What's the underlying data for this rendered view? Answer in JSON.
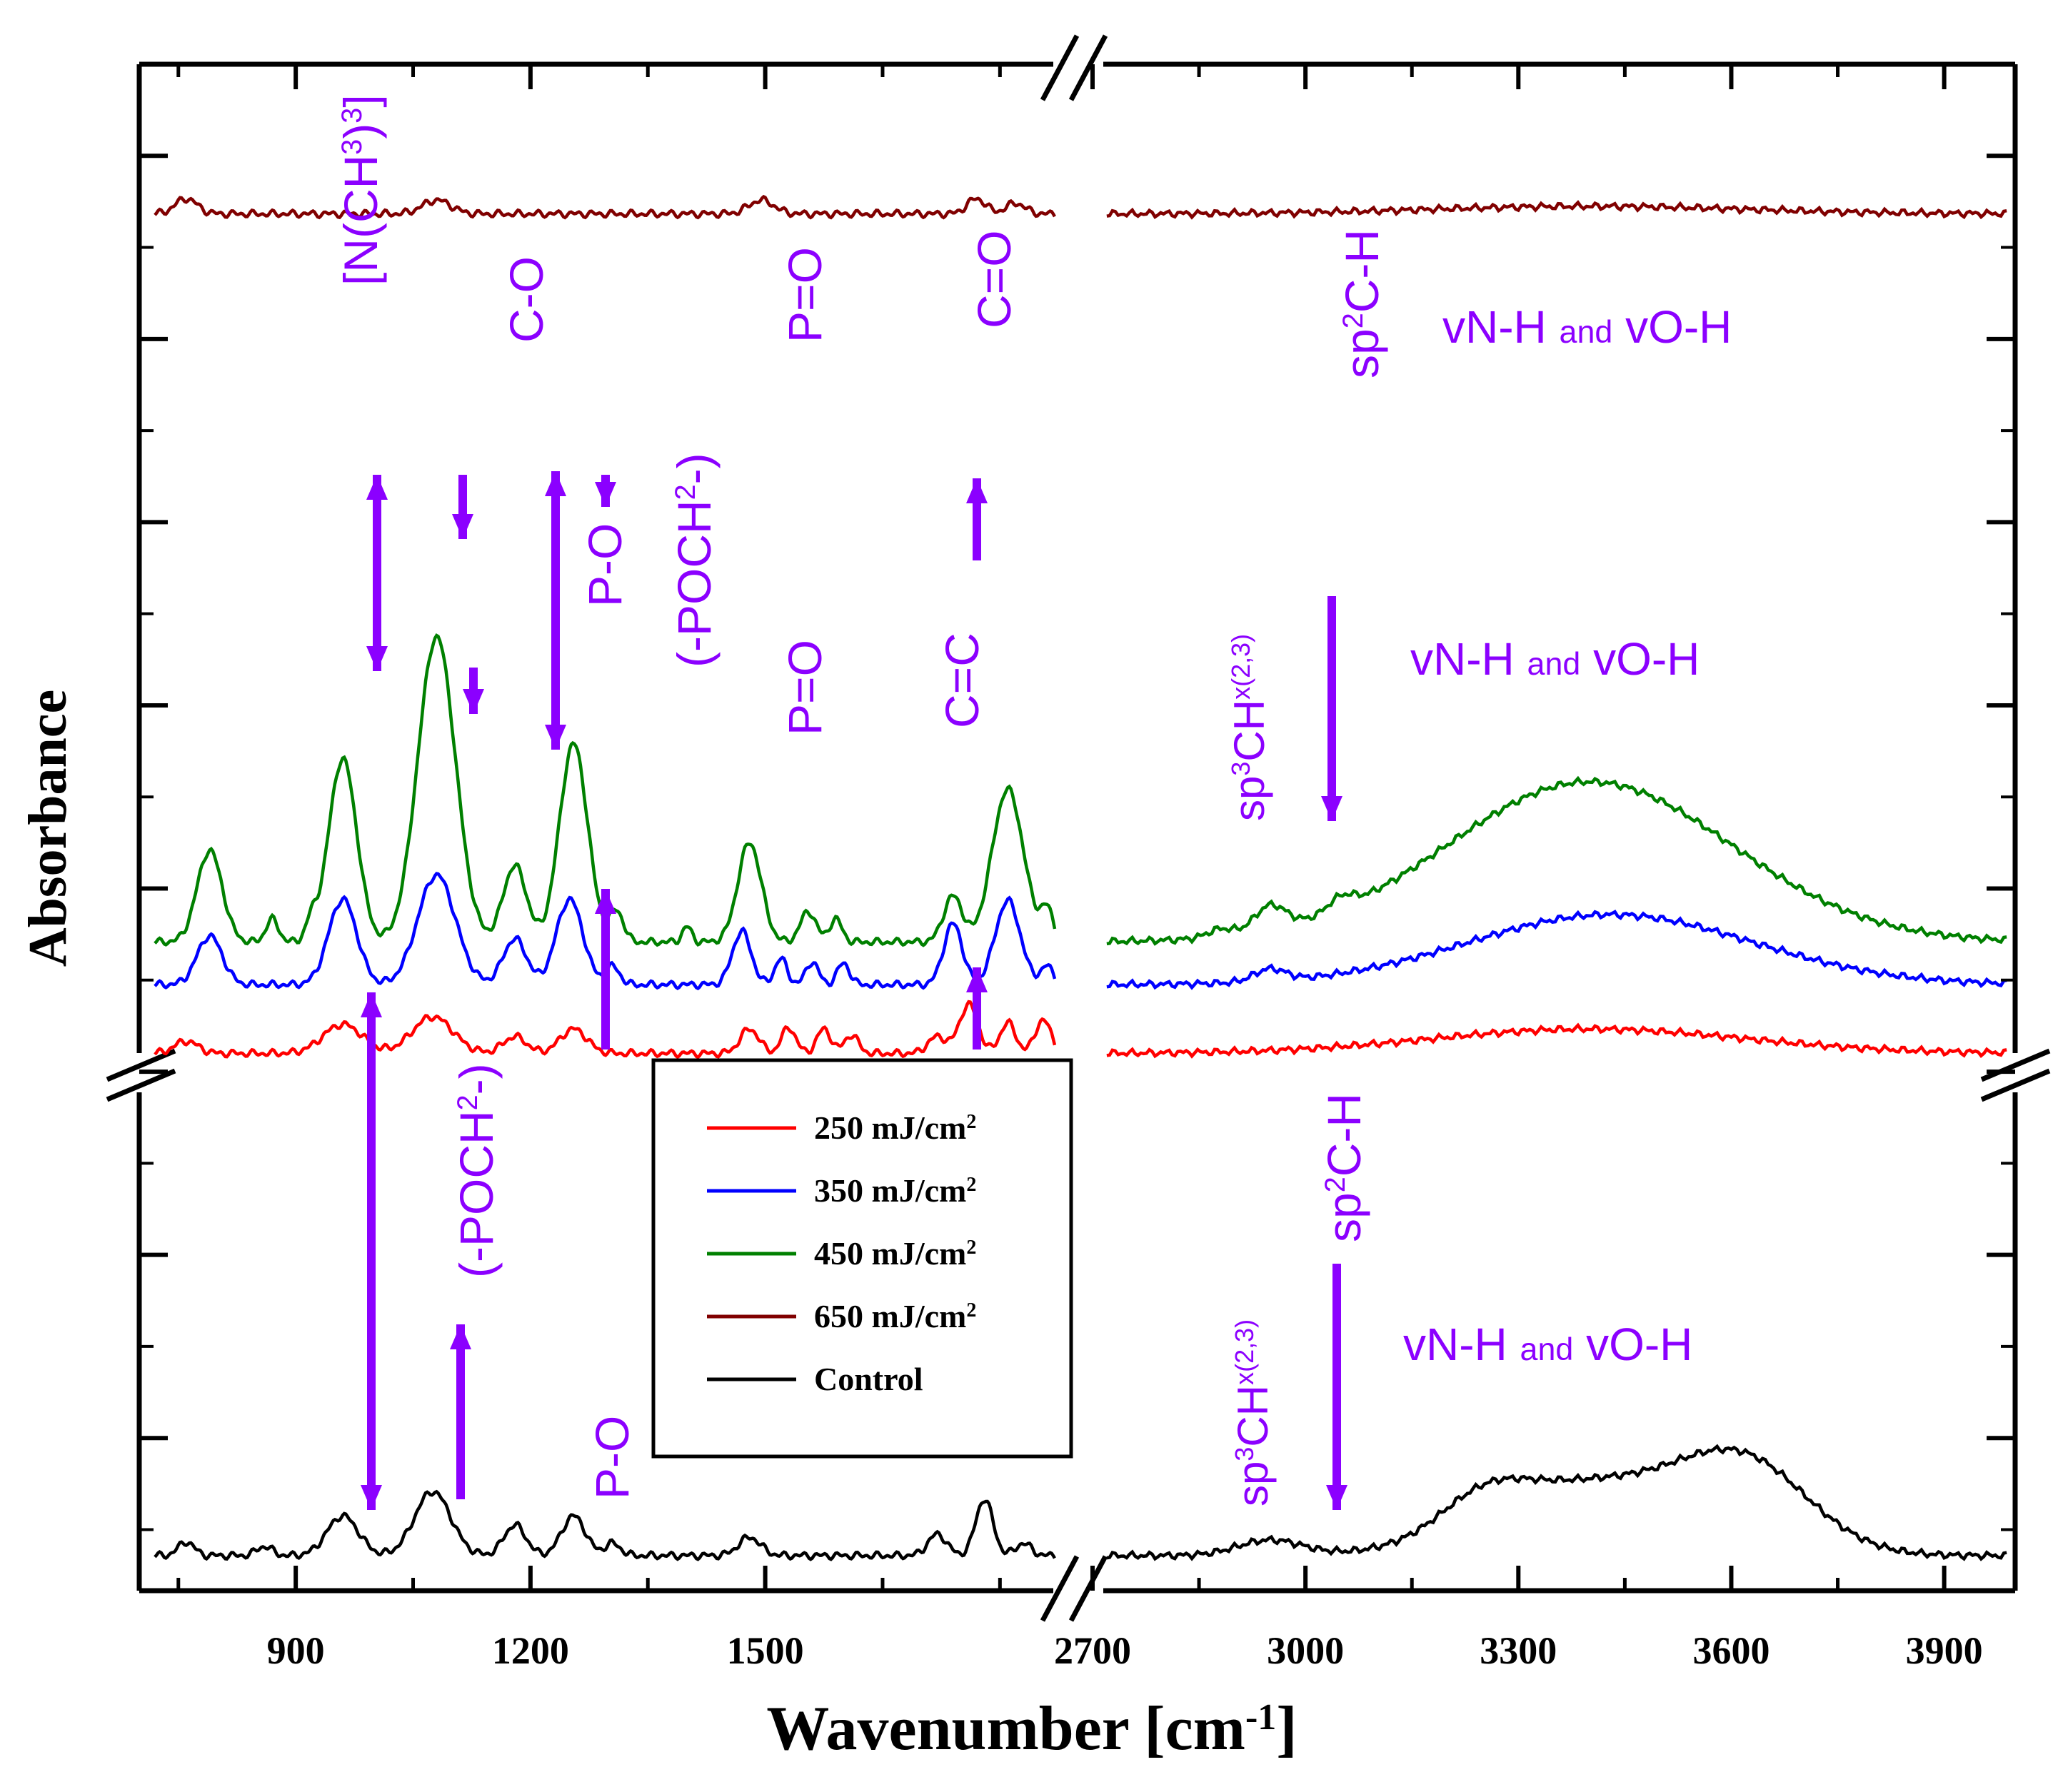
{
  "chart_data": {
    "type": "line",
    "xlabel": "Wavenumber [cm",
    "xlabel_sup": "-1",
    "xlabel_end": "]",
    "ylabel": "Absorbance",
    "axis_break": "x",
    "x_segments": [
      {
        "range": [
          700,
          1880
        ],
        "ticks": [
          900,
          1200,
          1500
        ]
      },
      {
        "range": [
          2700,
          4000
        ],
        "ticks": [
          2700,
          3000,
          3300,
          3600,
          3900
        ]
      }
    ],
    "y_range": [
      0,
      100
    ],
    "colors": {
      "250": "#ff0000",
      "350": "#0000ff",
      "450": "#008000",
      "650": "#800000",
      "control": "#000000",
      "annotation": "#8b00ff"
    },
    "legend": {
      "position": "center",
      "entries": [
        {
          "label": "250 mJ/cm",
          "sup": "2",
          "color": "#ff0000"
        },
        {
          "label": "350 mJ/cm",
          "sup": "2",
          "color": "#0000ff"
        },
        {
          "label": "450 mJ/cm",
          "sup": "2",
          "color": "#008000"
        },
        {
          "label": "650 mJ/cm",
          "sup": "2",
          "color": "#800000"
        },
        {
          "label": "Control",
          "sup": "",
          "color": "#000000"
        }
      ]
    },
    "series": [
      {
        "name": "450 mJ/cm2",
        "color": "#008000",
        "baseline": 42.5,
        "peaks": [
          [
            790,
            6,
            16
          ],
          [
            870,
            1.5,
            8
          ],
          [
            920,
            1.2,
            7
          ],
          [
            960,
            12,
            18
          ],
          [
            1080,
            20,
            24
          ],
          [
            1180,
            5,
            15
          ],
          [
            1255,
            13,
            18
          ],
          [
            1310,
            2,
            9
          ],
          [
            1400,
            1,
            6
          ],
          [
            1480,
            6.5,
            15
          ],
          [
            1555,
            2,
            10
          ],
          [
            1590,
            1.5,
            8
          ],
          [
            1740,
            3,
            12
          ],
          [
            1810,
            10,
            20
          ],
          [
            1860,
            2,
            8
          ]
        ],
        "right_peaks": [
          [
            2880,
            0.5,
            18
          ],
          [
            2950,
            1.6,
            22
          ],
          [
            3050,
            0.8,
            18
          ],
          [
            3400,
            10.5,
            200
          ]
        ]
      },
      {
        "name": "350 mJ/cm2",
        "color": "#0000ff",
        "baseline": 39.7,
        "peaks": [
          [
            790,
            3.2,
            16
          ],
          [
            960,
            5.6,
            18
          ],
          [
            1080,
            7.2,
            24
          ],
          [
            1180,
            3,
            15
          ],
          [
            1250,
            5.6,
            17
          ],
          [
            1305,
            1.2,
            9
          ],
          [
            1470,
            3.5,
            12
          ],
          [
            1520,
            1.7,
            8
          ],
          [
            1560,
            1.5,
            8
          ],
          [
            1600,
            1.4,
            8
          ],
          [
            1740,
            4,
            12
          ],
          [
            1810,
            5.5,
            16
          ],
          [
            1860,
            1.2,
            8
          ]
        ],
        "right_peaks": [
          [
            2950,
            0.8,
            22
          ],
          [
            3430,
            4.6,
            200
          ]
        ]
      },
      {
        "name": "250 mJ/cm2",
        "color": "#ff0000",
        "baseline": 35.2,
        "peaks": [
          [
            760,
            0.8,
            15
          ],
          [
            960,
            1.9,
            25
          ],
          [
            1075,
            2.4,
            26
          ],
          [
            1180,
            1.1,
            15
          ],
          [
            1255,
            1.6,
            17
          ],
          [
            1480,
            1.6,
            12
          ],
          [
            1530,
            1.7,
            9
          ],
          [
            1575,
            1.6,
            9
          ],
          [
            1610,
            1.2,
            9
          ],
          [
            1720,
            1.1,
            12
          ],
          [
            1760,
            3.2,
            12
          ],
          [
            1810,
            2,
            10
          ],
          [
            1855,
            2.2,
            10
          ]
        ],
        "right_peaks": [
          [
            3400,
            1.6,
            220
          ]
        ]
      },
      {
        "name": "650 mJ/cm2",
        "color": "#800000",
        "baseline": 90.2,
        "peaks": [
          [
            760,
            1,
            14
          ],
          [
            1080,
            0.9,
            18
          ],
          [
            1495,
            0.9,
            16
          ],
          [
            1770,
            1,
            12
          ],
          [
            1820,
            0.7,
            12
          ]
        ],
        "right_peaks": [
          [
            3400,
            0.5,
            220
          ]
        ]
      },
      {
        "name": "Control",
        "color": "#000000",
        "baseline": 2.3,
        "peaks": [
          [
            760,
            0.9,
            10
          ],
          [
            860,
            0.6,
            10
          ],
          [
            960,
            2.6,
            20
          ],
          [
            1075,
            4.2,
            23
          ],
          [
            1180,
            2,
            14
          ],
          [
            1255,
            2.6,
            15
          ],
          [
            1305,
            0.8,
            10
          ],
          [
            1480,
            1.2,
            14
          ],
          [
            1720,
            1.4,
            12
          ],
          [
            1780,
            3.7,
            11
          ],
          [
            1830,
            0.8,
            10
          ]
        ],
        "right_peaks": [
          [
            2950,
            1,
            45
          ],
          [
            3250,
            2,
            60
          ],
          [
            3400,
            4.7,
            140
          ],
          [
            3620,
            5.4,
            90
          ]
        ]
      }
    ],
    "annotations": [
      {
        "text": "[N(CH3)3]",
        "parts": [
          [
            "[N(CH",
            false
          ],
          [
            "3",
            true
          ],
          [
            ")",
            false
          ],
          [
            "3",
            true
          ],
          [
            "]",
            false
          ]
        ]
      },
      {
        "text": "C-O"
      },
      {
        "text": "P=O"
      },
      {
        "text": "C=O"
      },
      {
        "text": "sp2C-H",
        "parts": [
          [
            "sp",
            false
          ],
          [
            "2",
            true
          ],
          [
            "C-H",
            false
          ]
        ]
      },
      {
        "text": "vN-H and vO-H",
        "parts": [
          [
            "vN-H ",
            false
          ],
          [
            "and",
            false
          ],
          [
            " vO-H",
            false
          ]
        ]
      },
      {
        "text": "P-O"
      },
      {
        "text": "(-POCH2-)",
        "parts": [
          [
            "(-POCH",
            false
          ],
          [
            "2",
            true
          ],
          [
            "-)",
            false
          ]
        ]
      },
      {
        "text": "P=O"
      },
      {
        "text": "C=C"
      },
      {
        "text": "sp3CHx(2,3)",
        "parts": [
          [
            "sp",
            false
          ],
          [
            "3",
            true
          ],
          [
            "CH",
            false
          ],
          [
            "x(2,3)",
            true
          ]
        ]
      },
      {
        "text": "vN-H and vO-H",
        "parts": [
          [
            "vN-H ",
            false
          ],
          [
            "and",
            false
          ],
          [
            " vO-H",
            false
          ]
        ]
      },
      {
        "text": "(-POCH2-)",
        "parts": [
          [
            "(-POCH",
            false
          ],
          [
            "2",
            true
          ],
          [
            "-)",
            false
          ]
        ]
      },
      {
        "text": "P-O"
      },
      {
        "text": "sp3CHx(2,3)",
        "parts": [
          [
            "sp",
            false
          ],
          [
            "3",
            true
          ],
          [
            "CH",
            false
          ],
          [
            "x(2,3)",
            true
          ]
        ]
      },
      {
        "text": "sp2C-H",
        "parts": [
          [
            "sp",
            false
          ],
          [
            "2",
            true
          ],
          [
            "C-H",
            false
          ]
        ]
      },
      {
        "text": "vN-H and vO-H",
        "parts": [
          [
            "vN-H ",
            false
          ],
          [
            "and",
            false
          ],
          [
            " vO-H",
            false
          ]
        ]
      }
    ]
  }
}
